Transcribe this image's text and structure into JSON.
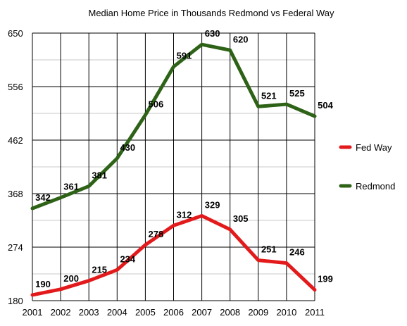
{
  "chart_data": {
    "type": "line",
    "title": "Median Home Price in Thousands Redmond vs Federal Way",
    "xlabel": "",
    "ylabel": "",
    "x": [
      "2001",
      "2002",
      "2003",
      "2004",
      "2005",
      "2006",
      "2007",
      "2008",
      "2009",
      "2010",
      "2011"
    ],
    "ylim": [
      180,
      650
    ],
    "yticks": [
      "180",
      "274",
      "368",
      "462",
      "556",
      "650"
    ],
    "grid": true,
    "legend_position": "right",
    "series": [
      {
        "name": "Fed Way",
        "color": "#e31a1c",
        "values": [
          190,
          200,
          215,
          234,
          278,
          312,
          329,
          305,
          251,
          246,
          199
        ],
        "labels": [
          "190",
          "200",
          "215",
          "234",
          "278",
          "312",
          "329",
          "305",
          "251",
          "246",
          "199"
        ]
      },
      {
        "name": "Redmond",
        "color": "#2e6317",
        "values": [
          342,
          361,
          381,
          430,
          506,
          591,
          630,
          620,
          521,
          525,
          504
        ],
        "labels": [
          "342",
          "361",
          "381",
          "430",
          "506",
          "591",
          "630",
          "620",
          "521",
          "525",
          "504"
        ]
      }
    ]
  }
}
